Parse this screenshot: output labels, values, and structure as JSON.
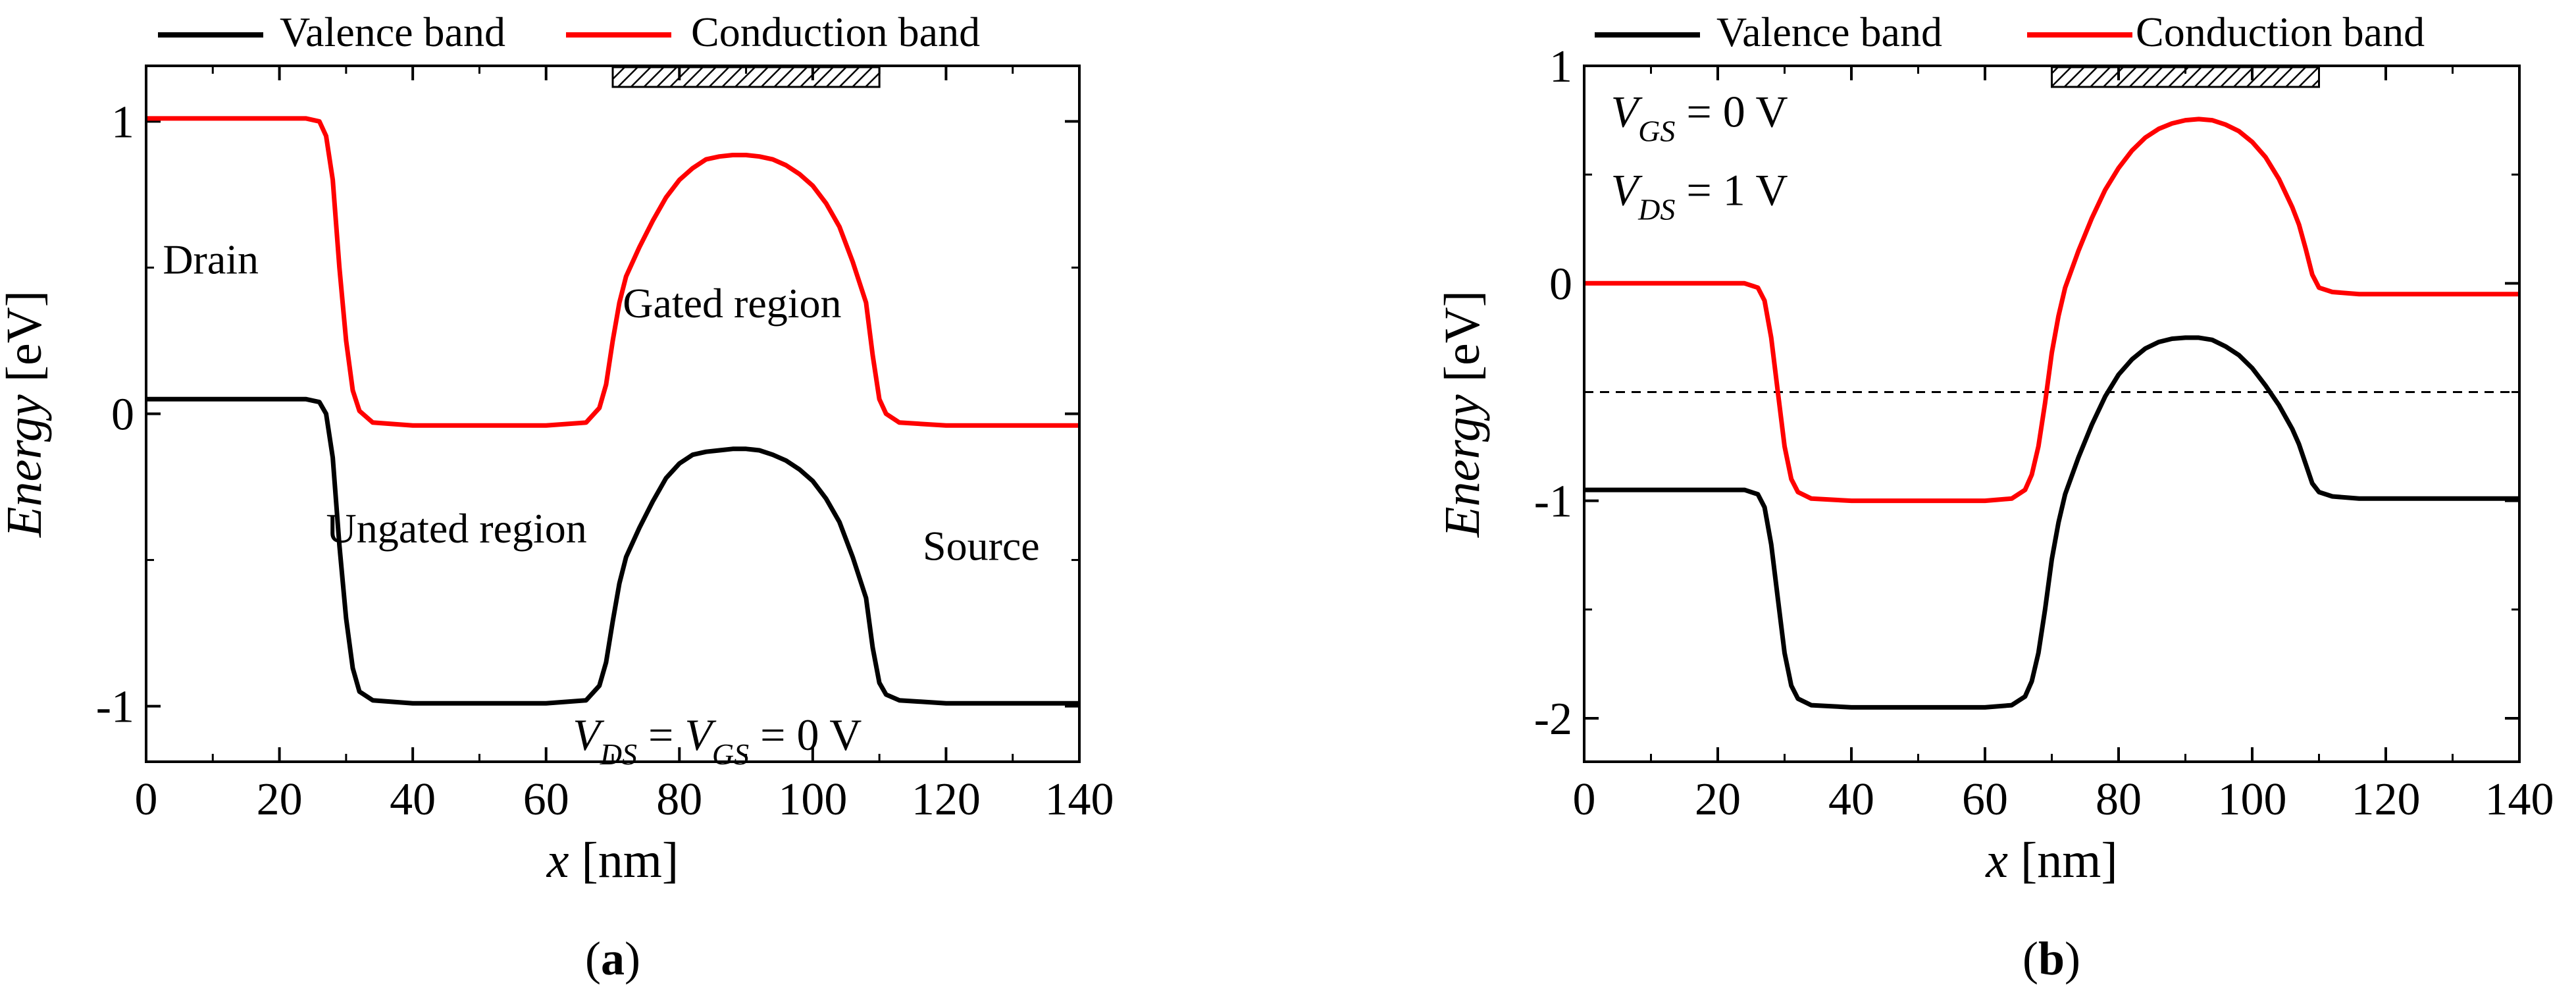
{
  "legend": {
    "valence_label": "Valence band",
    "conduction_label": "Conduction band"
  },
  "colors": {
    "valence": "#000000",
    "conduction": "#ff0000",
    "axis": "#000000",
    "gate": "#000000"
  },
  "chart_data": [
    {
      "type": "line",
      "panel_label": "a",
      "xlabel_var": "x",
      "xlabel_unit": "[nm]",
      "ylabel_var": "Energy",
      "ylabel_unit": "[eV]",
      "xlim": [
        0,
        140
      ],
      "ylim": [
        -1.19,
        1.19
      ],
      "x_ticks": [
        0,
        20,
        40,
        60,
        80,
        100,
        120,
        140
      ],
      "x_tick_labels": [
        "0",
        "20",
        "40",
        "60",
        "80",
        "100",
        "120",
        "140"
      ],
      "y_ticks": [
        1,
        0,
        -1
      ],
      "y_tick_labels": [
        "1",
        "0",
        "-1"
      ],
      "gate": {
        "x_start": 70,
        "x_end": 110
      },
      "series": [
        {
          "name": "Conduction band",
          "points": [
            [
              0,
              1.01
            ],
            [
              24,
              1.01
            ],
            [
              26,
              1.0
            ],
            [
              27,
              0.95
            ],
            [
              28,
              0.8
            ],
            [
              29,
              0.5
            ],
            [
              30,
              0.25
            ],
            [
              31,
              0.08
            ],
            [
              32,
              0.01
            ],
            [
              34,
              -0.03
            ],
            [
              40,
              -0.04
            ],
            [
              60,
              -0.04
            ],
            [
              66,
              -0.03
            ],
            [
              68,
              0.02
            ],
            [
              69,
              0.1
            ],
            [
              70,
              0.25
            ],
            [
              71,
              0.38
            ],
            [
              72,
              0.47
            ],
            [
              74,
              0.57
            ],
            [
              76,
              0.66
            ],
            [
              78,
              0.74
            ],
            [
              80,
              0.8
            ],
            [
              82,
              0.84
            ],
            [
              84,
              0.87
            ],
            [
              86,
              0.88
            ],
            [
              88,
              0.885
            ],
            [
              90,
              0.885
            ],
            [
              92,
              0.88
            ],
            [
              94,
              0.87
            ],
            [
              96,
              0.85
            ],
            [
              98,
              0.82
            ],
            [
              100,
              0.78
            ],
            [
              102,
              0.72
            ],
            [
              104,
              0.64
            ],
            [
              106,
              0.52
            ],
            [
              108,
              0.38
            ],
            [
              109,
              0.2
            ],
            [
              110,
              0.05
            ],
            [
              111,
              0.0
            ],
            [
              113,
              -0.03
            ],
            [
              120,
              -0.04
            ],
            [
              140,
              -0.04
            ]
          ]
        },
        {
          "name": "Valence band",
          "points": [
            [
              0,
              0.05
            ],
            [
              24,
              0.05
            ],
            [
              26,
              0.04
            ],
            [
              27,
              0.0
            ],
            [
              28,
              -0.15
            ],
            [
              29,
              -0.45
            ],
            [
              30,
              -0.7
            ],
            [
              31,
              -0.87
            ],
            [
              32,
              -0.95
            ],
            [
              34,
              -0.98
            ],
            [
              40,
              -0.99
            ],
            [
              60,
              -0.99
            ],
            [
              66,
              -0.98
            ],
            [
              68,
              -0.93
            ],
            [
              69,
              -0.85
            ],
            [
              70,
              -0.71
            ],
            [
              71,
              -0.58
            ],
            [
              72,
              -0.49
            ],
            [
              74,
              -0.39
            ],
            [
              76,
              -0.3
            ],
            [
              78,
              -0.22
            ],
            [
              80,
              -0.17
            ],
            [
              82,
              -0.14
            ],
            [
              84,
              -0.13
            ],
            [
              86,
              -0.125
            ],
            [
              88,
              -0.12
            ],
            [
              90,
              -0.12
            ],
            [
              92,
              -0.125
            ],
            [
              94,
              -0.14
            ],
            [
              96,
              -0.16
            ],
            [
              98,
              -0.19
            ],
            [
              100,
              -0.23
            ],
            [
              102,
              -0.29
            ],
            [
              104,
              -0.37
            ],
            [
              106,
              -0.49
            ],
            [
              108,
              -0.63
            ],
            [
              109,
              -0.8
            ],
            [
              110,
              -0.92
            ],
            [
              111,
              -0.96
            ],
            [
              113,
              -0.98
            ],
            [
              120,
              -0.99
            ],
            [
              140,
              -0.99
            ]
          ]
        }
      ],
      "annotations": [
        {
          "text": "Drain",
          "x": 2.5,
          "y": 0.48,
          "anchor": "start"
        },
        {
          "text": "Gated region",
          "x": 71.5,
          "y": 0.33,
          "anchor": "start"
        },
        {
          "text": "Ungated region",
          "x": 27,
          "y": -0.44,
          "anchor": "start"
        },
        {
          "text": "Source",
          "x": 116.5,
          "y": -0.5,
          "anchor": "start"
        }
      ],
      "equation": {
        "x": 64,
        "y": -1.15,
        "V": "V",
        "sub1": "DS",
        "mid": " = ",
        "sub2": "GS",
        "tail": " = 0 V"
      }
    },
    {
      "type": "line",
      "panel_label": "b",
      "xlabel_var": "x",
      "xlabel_unit": "[nm]",
      "ylabel_var": "Energy",
      "ylabel_unit": "[eV]",
      "xlim": [
        0,
        140
      ],
      "ylim": [
        -2.2,
        1.0
      ],
      "x_ticks": [
        0,
        20,
        40,
        60,
        80,
        100,
        120,
        140
      ],
      "x_tick_labels": [
        "0",
        "20",
        "40",
        "60",
        "80",
        "100",
        "120",
        "140"
      ],
      "y_ticks": [
        1,
        0,
        -1,
        -2
      ],
      "y_tick_labels": [
        "1",
        "0",
        "-1",
        "-2"
      ],
      "gate": {
        "x_start": 70,
        "x_end": 110
      },
      "dashed_level": -0.5,
      "series": [
        {
          "name": "Conduction band",
          "points": [
            [
              0,
              0.0
            ],
            [
              24,
              0.0
            ],
            [
              26,
              -0.02
            ],
            [
              27,
              -0.08
            ],
            [
              28,
              -0.25
            ],
            [
              29,
              -0.5
            ],
            [
              30,
              -0.75
            ],
            [
              31,
              -0.9
            ],
            [
              32,
              -0.96
            ],
            [
              34,
              -0.99
            ],
            [
              40,
              -1.0
            ],
            [
              60,
              -1.0
            ],
            [
              64,
              -0.99
            ],
            [
              66,
              -0.95
            ],
            [
              67,
              -0.88
            ],
            [
              68,
              -0.75
            ],
            [
              69,
              -0.55
            ],
            [
              70,
              -0.32
            ],
            [
              71,
              -0.15
            ],
            [
              72,
              -0.02
            ],
            [
              74,
              0.15
            ],
            [
              76,
              0.3
            ],
            [
              78,
              0.43
            ],
            [
              80,
              0.53
            ],
            [
              82,
              0.61
            ],
            [
              84,
              0.67
            ],
            [
              86,
              0.71
            ],
            [
              88,
              0.735
            ],
            [
              90,
              0.75
            ],
            [
              92,
              0.755
            ],
            [
              94,
              0.75
            ],
            [
              96,
              0.73
            ],
            [
              98,
              0.7
            ],
            [
              100,
              0.65
            ],
            [
              102,
              0.58
            ],
            [
              104,
              0.48
            ],
            [
              106,
              0.35
            ],
            [
              107,
              0.27
            ],
            [
              108,
              0.16
            ],
            [
              109,
              0.04
            ],
            [
              110,
              -0.02
            ],
            [
              112,
              -0.04
            ],
            [
              116,
              -0.05
            ],
            [
              140,
              -0.05
            ]
          ]
        },
        {
          "name": "Valence band",
          "points": [
            [
              0,
              -0.95
            ],
            [
              24,
              -0.95
            ],
            [
              26,
              -0.97
            ],
            [
              27,
              -1.03
            ],
            [
              28,
              -1.2
            ],
            [
              29,
              -1.45
            ],
            [
              30,
              -1.7
            ],
            [
              31,
              -1.85
            ],
            [
              32,
              -1.91
            ],
            [
              34,
              -1.94
            ],
            [
              40,
              -1.95
            ],
            [
              60,
              -1.95
            ],
            [
              64,
              -1.94
            ],
            [
              66,
              -1.9
            ],
            [
              67,
              -1.83
            ],
            [
              68,
              -1.7
            ],
            [
              69,
              -1.5
            ],
            [
              70,
              -1.27
            ],
            [
              71,
              -1.1
            ],
            [
              72,
              -0.97
            ],
            [
              74,
              -0.8
            ],
            [
              76,
              -0.65
            ],
            [
              78,
              -0.52
            ],
            [
              80,
              -0.42
            ],
            [
              82,
              -0.35
            ],
            [
              84,
              -0.3
            ],
            [
              86,
              -0.27
            ],
            [
              88,
              -0.255
            ],
            [
              90,
              -0.25
            ],
            [
              92,
              -0.25
            ],
            [
              94,
              -0.26
            ],
            [
              96,
              -0.29
            ],
            [
              98,
              -0.33
            ],
            [
              100,
              -0.39
            ],
            [
              102,
              -0.47
            ],
            [
              104,
              -0.56
            ],
            [
              106,
              -0.67
            ],
            [
              107,
              -0.74
            ],
            [
              108,
              -0.83
            ],
            [
              109,
              -0.92
            ],
            [
              110,
              -0.96
            ],
            [
              112,
              -0.98
            ],
            [
              116,
              -0.99
            ],
            [
              140,
              -0.99
            ]
          ]
        }
      ],
      "annotations": [],
      "equations": [
        {
          "x": 4,
          "y": 0.72,
          "V": "V",
          "sub": "GS",
          "tail": " = 0 V"
        },
        {
          "x": 4,
          "y": 0.36,
          "V": "V",
          "sub": "DS",
          "tail": " = 1 V"
        }
      ]
    }
  ]
}
